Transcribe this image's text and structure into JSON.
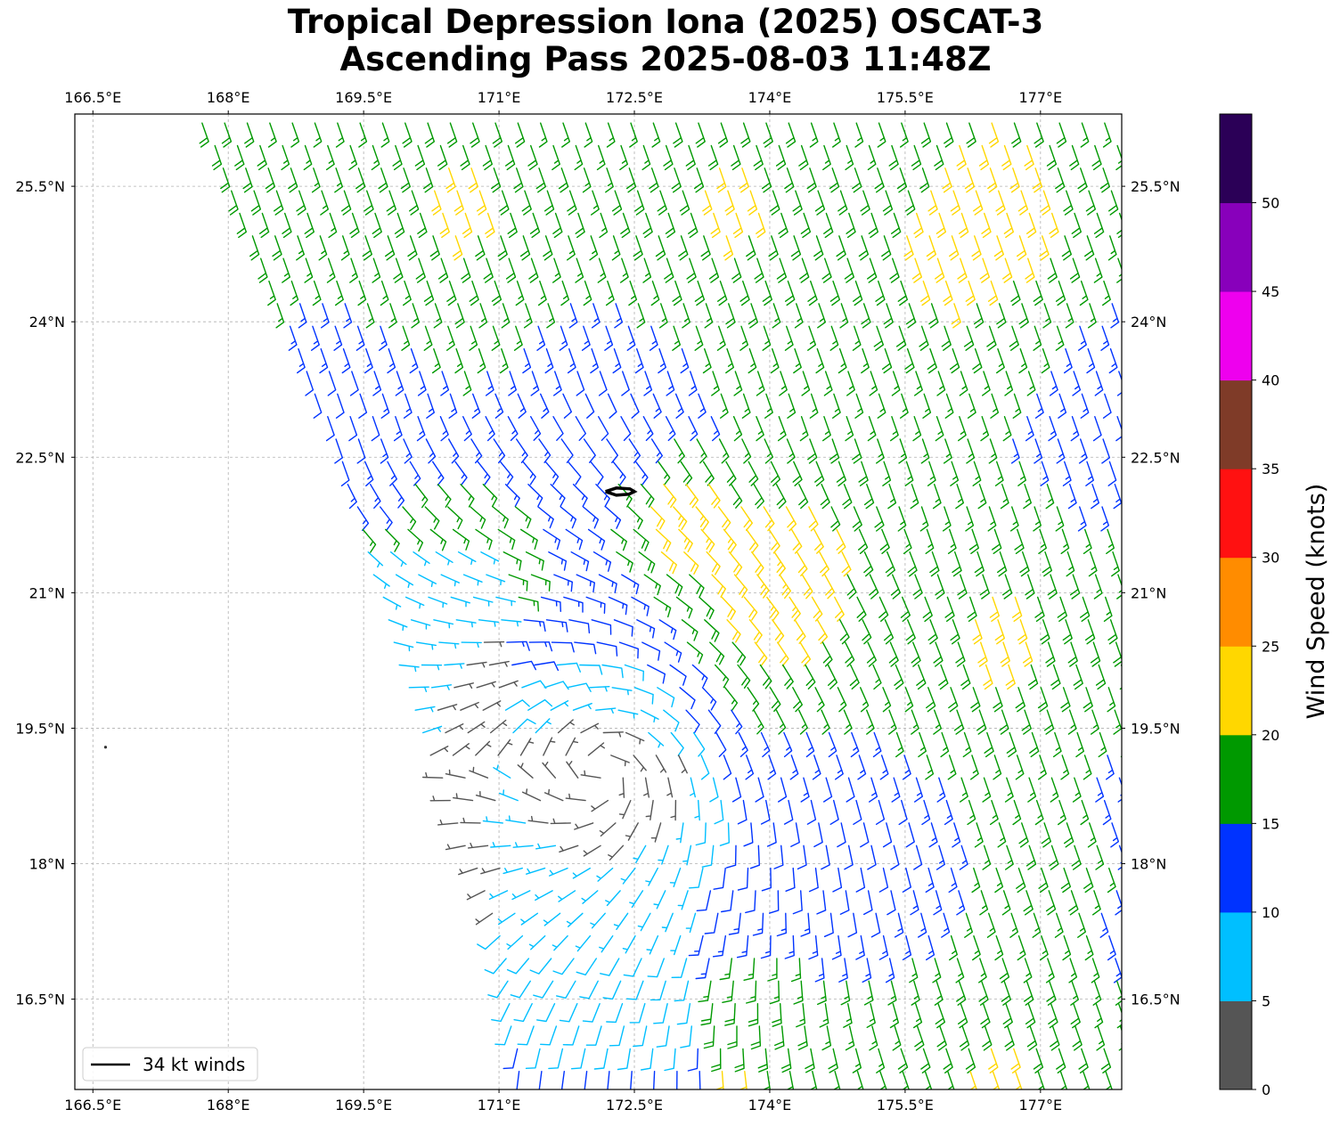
{
  "title": {
    "line1": "Tropical Depression Iona (2025) OSCAT-3",
    "line2": "Ascending Pass 2025-08-03 11:48Z"
  },
  "chart_data": {
    "type": "wind_barbs_map",
    "title": "Tropical Depression Iona (2025) OSCAT-3 Ascending Pass 2025-08-03 11:48Z",
    "lon_range": [
      166.3,
      177.9
    ],
    "lat_range": [
      15.5,
      26.3
    ],
    "lon_ticks": [
      166.5,
      168,
      169.5,
      171,
      172.5,
      174,
      175.5,
      177
    ],
    "lon_tick_labels": [
      "166.5°E",
      "168°E",
      "169.5°E",
      "171°E",
      "172.5°E",
      "174°E",
      "175.5°E",
      "177°E"
    ],
    "lat_ticks": [
      16.5,
      18,
      19.5,
      21,
      22.5,
      24,
      25.5
    ],
    "lat_tick_labels": [
      "16.5°N",
      "18°N",
      "19.5°N",
      "21°N",
      "22.5°N",
      "24°N",
      "25.5°N"
    ],
    "grid": true,
    "swath_west_edge": [
      [
        167.7,
        26.2
      ],
      [
        169.2,
        22.6
      ],
      [
        170.0,
        19.8
      ],
      [
        171.0,
        17.2
      ],
      [
        171.2,
        15.6
      ]
    ],
    "storm_center": {
      "lon": 172.3,
      "lat": 21.5
    },
    "circulation_center": {
      "lon": 172.1,
      "lat": 19.0
    },
    "wind_34kt_contour": [
      [
        172.18,
        22.12
      ],
      [
        172.3,
        22.16
      ],
      [
        172.45,
        22.15
      ],
      [
        172.5,
        22.12
      ],
      [
        172.44,
        22.09
      ],
      [
        172.3,
        22.08
      ],
      [
        172.18,
        22.12
      ]
    ],
    "island": {
      "lon": 166.64,
      "lat": 19.29
    },
    "colorbar": {
      "label": "Wind Speed (knots)",
      "bounds": [
        0,
        5,
        10,
        15,
        20,
        25,
        30,
        35,
        40,
        45,
        50,
        55
      ],
      "tick_labels": [
        "0",
        "5",
        "10",
        "15",
        "20",
        "25",
        "30",
        "35",
        "40",
        "45",
        "50"
      ],
      "colors": [
        "#555555",
        "#00bfff",
        "#0033ff",
        "#009900",
        "#ffd700",
        "#ff8c00",
        "#ff1111",
        "#7f3b28",
        "#ee00ee",
        "#8800bb",
        "#2b0057"
      ]
    },
    "legend": {
      "position": "lower-left",
      "entries": [
        {
          "label": "34 kt winds",
          "color": "#000000"
        }
      ]
    }
  }
}
